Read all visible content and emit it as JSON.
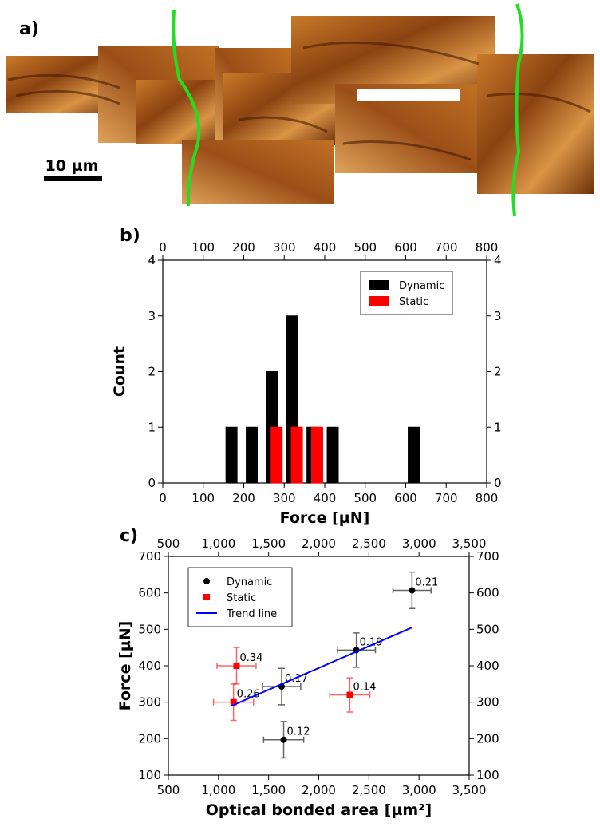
{
  "image_panel": {
    "label": "a)",
    "scale_bar": "10 µm"
  },
  "chart_data": [
    {
      "type": "histogram",
      "panel_label": "b)",
      "x_label": "Force [µN]",
      "y_label": "Count",
      "bins": [
        150,
        200,
        250,
        300,
        350,
        400,
        450,
        500,
        550,
        600,
        650,
        700
      ],
      "series": [
        {
          "name": "Dynamic",
          "color": "#000000",
          "values": [
            1,
            1,
            2,
            3,
            1,
            1,
            0,
            0,
            0,
            1,
            0
          ]
        },
        {
          "name": "Static",
          "color": "#ff0000",
          "values": [
            0,
            0,
            1,
            1,
            1,
            0,
            0,
            0,
            0,
            0,
            0
          ]
        }
      ],
      "xlim": [
        0,
        800
      ],
      "xticks": [
        0,
        100,
        200,
        300,
        400,
        500,
        600,
        700,
        800
      ],
      "ylim": [
        0,
        4
      ],
      "yticks": [
        0,
        1,
        2,
        3,
        4
      ],
      "legend": "upper right"
    },
    {
      "type": "scatter",
      "panel_label": "c)",
      "x_label": "Optical bonded area [µm²]",
      "y_label": "Force [µN]",
      "series": [
        {
          "name": "Dynamic",
          "color": "#000000",
          "marker": "circle",
          "x": [
            2930,
            2375,
            1630,
            1650
          ],
          "values": [
            607,
            443,
            343,
            197
          ],
          "xerr": [
            190,
            190,
            190,
            200
          ],
          "yerr": [
            50,
            47,
            50,
            50
          ],
          "labels": [
            "0.21",
            "0.19",
            "0.17",
            "0.12"
          ]
        },
        {
          "name": "Static",
          "color": "#ff0000",
          "marker": "square",
          "x": [
            1180,
            1150,
            2310
          ],
          "values": [
            400,
            300,
            320
          ],
          "xerr": [
            195,
            200,
            200
          ],
          "yerr": [
            50,
            50,
            47
          ],
          "labels": [
            "0.34",
            "0.26",
            "0.14"
          ]
        },
        {
          "name": "Trend line",
          "color": "#0000ff",
          "marker": "line",
          "x": [
            1130,
            2930
          ],
          "values": [
            290,
            505
          ]
        }
      ],
      "xlim": [
        500,
        3500
      ],
      "xticks": [
        500,
        {
          "value": 1000,
          "label": "1,000"
        },
        {
          "value": 1500,
          "label": "1,500"
        },
        {
          "value": 2000,
          "label": "2,000"
        },
        {
          "value": 2500,
          "label": "2,500"
        },
        {
          "value": 3000,
          "label": "3,000"
        },
        {
          "value": 3500,
          "label": "3,500"
        }
      ],
      "ylim": [
        100,
        700
      ],
      "yticks": [
        100,
        200,
        300,
        400,
        500,
        600,
        700
      ],
      "legend": "upper left"
    }
  ]
}
